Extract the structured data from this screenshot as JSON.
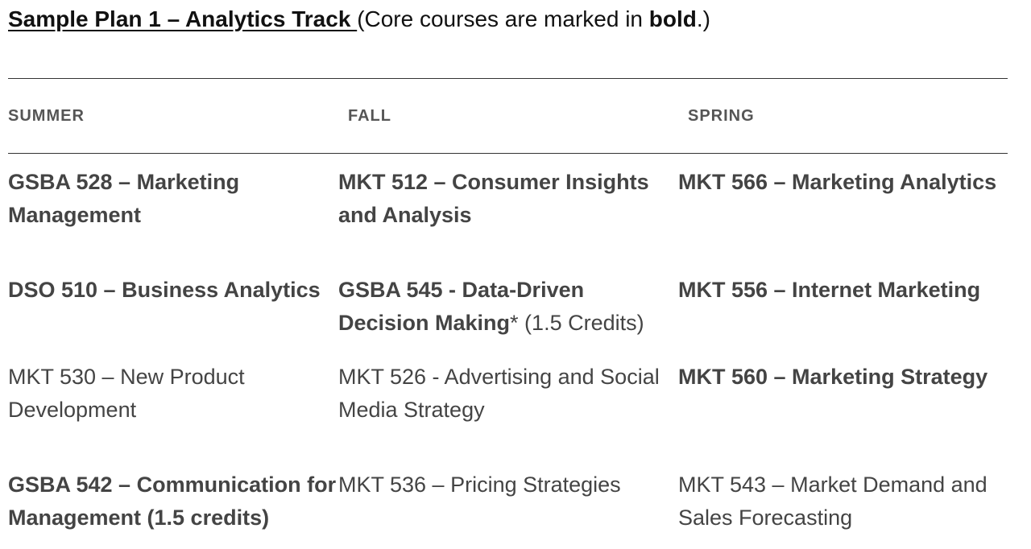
{
  "title": {
    "main": "Sample Plan 1 – Analytics Track ",
    "note_prefix": "(Core courses are marked in ",
    "note_bold": "bold",
    "note_suffix": ".)"
  },
  "headers": [
    "SUMMER",
    "FALL",
    "SPRING"
  ],
  "rows": [
    [
      {
        "bold": "GSBA 528 – Marketing Management",
        "normal": ""
      },
      {
        "bold": "MKT 512 – Consumer Insights and Analysis",
        "normal": ""
      },
      {
        "bold": "MKT 566 – Marketing Analytics",
        "normal": ""
      }
    ],
    [
      {
        "bold": "DSO 510 – Business Analytics",
        "normal": ""
      },
      {
        "bold": "GSBA 545 -  Data-Driven Decision Making",
        "normal": "* (1.5 Credits)"
      },
      {
        "bold": "MKT 556 – Internet Marketing",
        "normal": ""
      }
    ],
    [
      {
        "bold": "",
        "normal": "MKT 530 – New Product Development"
      },
      {
        "bold": "",
        "normal": "MKT 526 - Advertising and Social Media Strategy"
      },
      {
        "bold": "MKT 560 – Marketing Strategy",
        "normal": ""
      }
    ],
    [
      {
        "bold": "GSBA 542 – Communication for Management (1.5 credits)",
        "normal": ""
      },
      {
        "bold": "",
        "normal": "MKT 536 – Pricing Strategies"
      },
      {
        "bold": "",
        "normal": "MKT 543 – Market Demand and Sales Forecasting"
      }
    ]
  ]
}
